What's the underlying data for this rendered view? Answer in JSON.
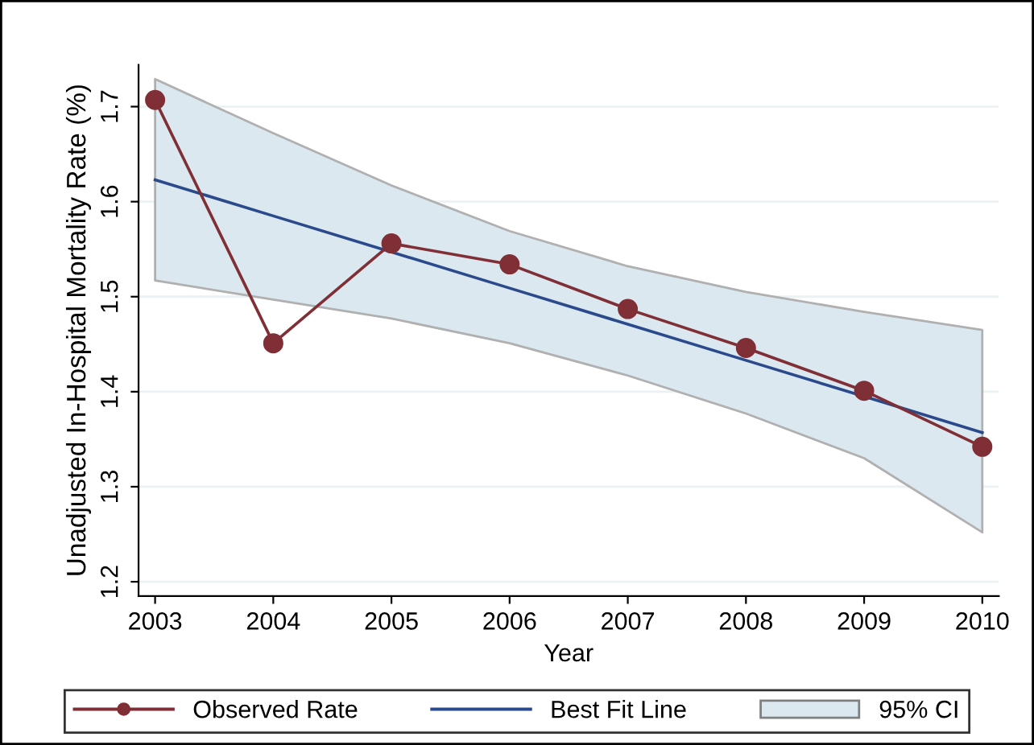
{
  "chart_data": {
    "type": "line",
    "xlabel": "Year",
    "ylabel": "Unadjusted In-Hospital Mortality Rate (%)",
    "x": [
      2003,
      2004,
      2005,
      2006,
      2007,
      2008,
      2009,
      2010
    ],
    "series": [
      {
        "name": "Observed Rate",
        "color": "#7f2f35",
        "marker": "circle",
        "values": [
          1.707,
          1.451,
          1.556,
          1.534,
          1.487,
          1.446,
          1.401,
          1.342
        ]
      },
      {
        "name": "Best Fit Line",
        "color": "#2b4a8b",
        "marker": "none",
        "values": [
          1.623,
          1.585,
          1.547,
          1.509,
          1.471,
          1.433,
          1.395,
          1.357
        ],
        "lower": [
          1.517,
          1.497,
          1.477,
          1.451,
          1.417,
          1.377,
          1.33,
          1.252
        ],
        "upper": [
          1.729,
          1.672,
          1.617,
          1.569,
          1.532,
          1.505,
          1.484,
          1.465
        ]
      }
    ],
    "annotations": [
      "95% CI"
    ],
    "xlim": [
      2002.86,
      2010.14
    ],
    "ylim": [
      1.185,
      1.744
    ],
    "xticks": [
      2003,
      2004,
      2005,
      2006,
      2007,
      2008,
      2009,
      2010
    ],
    "yticks": [
      1.2,
      1.3,
      1.4,
      1.5,
      1.6,
      1.7
    ],
    "grid": "y",
    "legend": "bottom",
    "line_style": "solid"
  }
}
